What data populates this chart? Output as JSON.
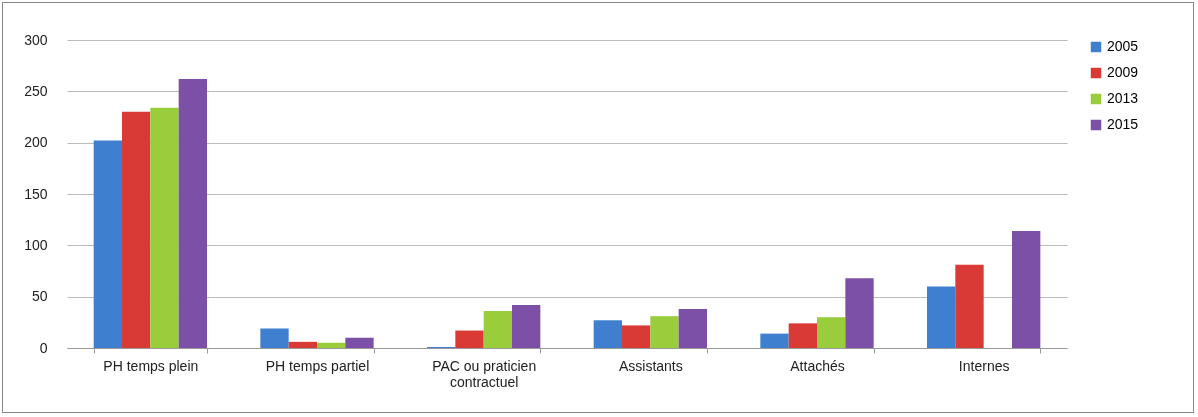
{
  "chart_data": {
    "type": "bar",
    "categories": [
      "PH temps plein",
      "PH temps partiel",
      "PAC ou praticien contractuel",
      "Assistants",
      "Attachés",
      "Internes"
    ],
    "series": [
      {
        "name": "2005",
        "color": "#3f7fcf",
        "values": [
          202,
          19,
          1,
          27,
          14,
          60
        ]
      },
      {
        "name": "2009",
        "color": "#d93a35",
        "values": [
          230,
          6,
          17,
          22,
          24,
          81
        ]
      },
      {
        "name": "2013",
        "color": "#9acd3c",
        "values": [
          234,
          5,
          36,
          31,
          30,
          null
        ]
      },
      {
        "name": "2015",
        "color": "#7d50a7",
        "values": [
          262,
          10,
          42,
          38,
          68,
          114
        ]
      }
    ],
    "ylim": [
      0,
      300
    ],
    "yticks": [
      0,
      50,
      100,
      150,
      200,
      250,
      300
    ],
    "grid": "y",
    "legend": "right"
  }
}
